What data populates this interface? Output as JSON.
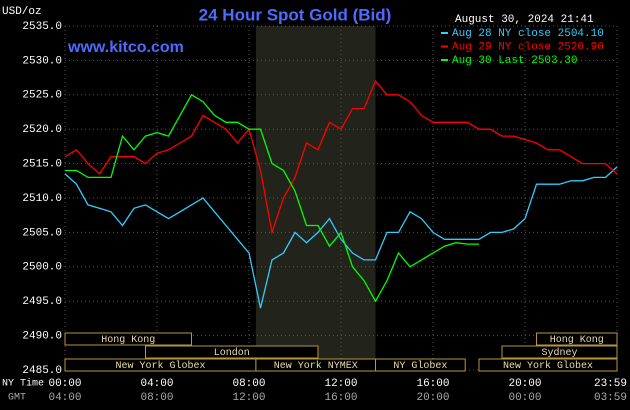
{
  "chart_data": {
    "type": "line",
    "title": "24 Hour Spot Gold (Bid)",
    "website": "www.kitco.com",
    "timestamp": "August 30, 2024 21:41",
    "y_axis_label": "USD/oz",
    "x_axis_label": "NY Time",
    "x2_axis_label": "GMT",
    "x": [
      0,
      0.5,
      1,
      1.5,
      2,
      2.5,
      3,
      3.5,
      4,
      4.5,
      5,
      5.5,
      6,
      6.5,
      7,
      7.5,
      8,
      8.5,
      9,
      9.5,
      10,
      10.5,
      11,
      11.5,
      12,
      12.5,
      13,
      13.5,
      14,
      14.5,
      15,
      15.5,
      16,
      16.5,
      17,
      17.5,
      18,
      18.5,
      19,
      19.5,
      20,
      20.5,
      21,
      21.5,
      22,
      22.5,
      23,
      23.5,
      24
    ],
    "xlim": [
      0,
      24
    ],
    "xticks": [
      {
        "value": 0,
        "label": "00:00"
      },
      {
        "value": 4,
        "label": "04:00"
      },
      {
        "value": 8,
        "label": "08:00"
      },
      {
        "value": 12,
        "label": "12:00"
      },
      {
        "value": 16,
        "label": "16:00"
      },
      {
        "value": 20,
        "label": "20:00"
      },
      {
        "value": 24,
        "label": "23:59"
      }
    ],
    "gmt_ticks": [
      "04:00",
      "08:00",
      "12:00",
      "16:00",
      "20:00",
      "00:00",
      "03:59"
    ],
    "ylim": [
      2485,
      2535
    ],
    "yticks": [
      {
        "value": 2535,
        "label": "2535.0"
      },
      {
        "value": 2530,
        "label": "2530.0"
      },
      {
        "value": 2525,
        "label": "2525.0"
      },
      {
        "value": 2520,
        "label": "2520.0"
      },
      {
        "value": 2515,
        "label": "2515.0"
      },
      {
        "value": 2510,
        "label": "2510.0"
      },
      {
        "value": 2505,
        "label": "2505.0"
      },
      {
        "value": 2500,
        "label": "2500.0"
      },
      {
        "value": 2495,
        "label": "2495.0"
      },
      {
        "value": 2490,
        "label": "2490.0"
      },
      {
        "value": 2485,
        "label": "2485.0"
      }
    ],
    "grid": true,
    "series": [
      {
        "name": "Aug 28 NY close 2504.10",
        "color": "#33ccff",
        "values": [
          2513.5,
          2512,
          2509,
          2508.5,
          2508,
          2506,
          2508.5,
          2509,
          2508,
          2507,
          2508,
          2509,
          2510,
          2508,
          2506,
          2504,
          2502,
          2494,
          2501,
          2502,
          2505,
          2503.5,
          2505,
          2507,
          2504,
          2502,
          2501,
          2501,
          2505,
          2505,
          2508,
          2507,
          2505,
          2504,
          2504,
          2504,
          2504,
          2505,
          2505,
          2505.5,
          2507,
          2512,
          2512,
          2512,
          2512.5,
          2512.5,
          2513,
          2513,
          2514.5
        ]
      },
      {
        "name": "Aug 29 NY close 2520.90",
        "color": "#ff0000",
        "values": [
          2516,
          2517,
          2515,
          2513.5,
          2516,
          2516,
          2516,
          2515,
          2516.5,
          2517,
          2518,
          2519,
          2522,
          2521,
          2520,
          2518,
          2520,
          2514,
          2505,
          2510,
          2513,
          2518,
          2517,
          2521,
          2520,
          2523,
          2523,
          2527,
          2525,
          2525,
          2524,
          2522,
          2521,
          2521,
          2521,
          2521,
          2520,
          2520,
          2519,
          2519,
          2518.5,
          2518,
          2517,
          2517,
          2516,
          2515,
          2515,
          2515,
          2513.5
        ]
      },
      {
        "name": "Aug 30 Last 2503.30",
        "color": "#00ff00",
        "values": [
          2514,
          2514,
          2513,
          2513,
          2513,
          2519,
          2517,
          2519,
          2519.5,
          2519,
          2522,
          2525,
          2524,
          2522,
          2521,
          2521,
          2520,
          2520,
          2515,
          2514,
          2511,
          2506,
          2506,
          2503,
          2505,
          2500,
          2498,
          2495,
          2498,
          2502,
          2500,
          2501,
          2502,
          2503,
          2503.5,
          2503.3,
          2503.3,
          null,
          null,
          null,
          null,
          null,
          null,
          null,
          null,
          null,
          null,
          null,
          null
        ]
      }
    ],
    "sessions": [
      [
        {
          "name": "Hong Kong",
          "start": 0,
          "end": 5.5
        },
        {
          "name": "Hong Kong",
          "start": 20.5,
          "end": 24
        }
      ],
      [
        {
          "name": "London",
          "start": 3.5,
          "end": 11
        },
        {
          "name": "Sydney",
          "start": 19,
          "end": 24
        }
      ],
      [
        {
          "name": "New York Globex",
          "start": 0,
          "end": 8.3
        },
        {
          "name": "New York NYMEX",
          "start": 8.3,
          "end": 13.5,
          "shaded": true
        },
        {
          "name": "NY Globex",
          "start": 13.5,
          "end": 17.4
        },
        {
          "name": "New York Globex",
          "start": 18,
          "end": 24
        }
      ]
    ]
  }
}
